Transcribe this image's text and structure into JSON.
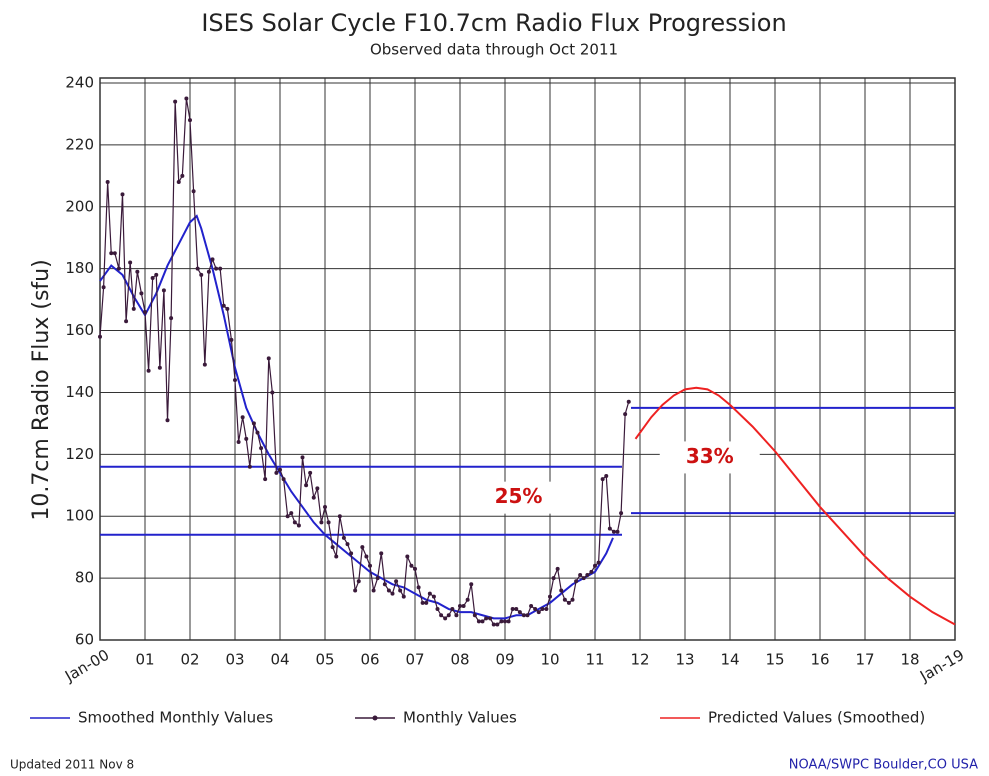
{
  "chart_data": {
    "type": "line",
    "title": "ISES Solar Cycle F10.7cm Radio Flux Progression",
    "subtitle": "Observed data through Oct 2011",
    "y_label": "10.7cm Radio Flux (sfu)",
    "xlim": [
      2000,
      2019
    ],
    "xticks": [
      {
        "value": 2000,
        "label": "Jan-00"
      },
      {
        "value": 2001,
        "label": "01"
      },
      {
        "value": 2002,
        "label": "02"
      },
      {
        "value": 2003,
        "label": "03"
      },
      {
        "value": 2004,
        "label": "04"
      },
      {
        "value": 2005,
        "label": "05"
      },
      {
        "value": 2006,
        "label": "06"
      },
      {
        "value": 2007,
        "label": "07"
      },
      {
        "value": 2008,
        "label": "08"
      },
      {
        "value": 2009,
        "label": "09"
      },
      {
        "value": 2010,
        "label": "10"
      },
      {
        "value": 2011,
        "label": "11"
      },
      {
        "value": 2012,
        "label": "12"
      },
      {
        "value": 2013,
        "label": "13"
      },
      {
        "value": 2014,
        "label": "14"
      },
      {
        "value": 2015,
        "label": "15"
      },
      {
        "value": 2016,
        "label": "16"
      },
      {
        "value": 2017,
        "label": "17"
      },
      {
        "value": 2018,
        "label": "18"
      },
      {
        "value": 2019,
        "label": "Jan-19"
      }
    ],
    "ylim": [
      60,
      240
    ],
    "yticks": [
      60,
      80,
      100,
      120,
      140,
      160,
      180,
      200,
      220,
      240
    ],
    "grid": true,
    "series": [
      {
        "name": "Smoothed Monthly Values",
        "color": "#2222cc",
        "markers": false,
        "x": [
          2000,
          2000.25,
          2000.5,
          2000.75,
          2001,
          2001.25,
          2001.5,
          2001.75,
          2002,
          2002.15,
          2002.25,
          2002.5,
          2002.75,
          2003,
          2003.25,
          2003.5,
          2003.75,
          2004,
          2004.25,
          2004.5,
          2004.75,
          2005,
          2005.25,
          2005.5,
          2005.75,
          2006,
          2006.25,
          2006.5,
          2006.75,
          2007,
          2007.25,
          2007.5,
          2007.75,
          2008,
          2008.25,
          2008.5,
          2008.75,
          2009,
          2009.25,
          2009.5,
          2009.75,
          2010,
          2010.25,
          2010.5,
          2010.75,
          2011,
          2011.25,
          2011.4
        ],
        "values": [
          176,
          181,
          178,
          171,
          165,
          172,
          181,
          188,
          195,
          197,
          193,
          180,
          165,
          148,
          135,
          127,
          120,
          114,
          108,
          103,
          98,
          94,
          91,
          88,
          85,
          82,
          80,
          78,
          77,
          75,
          73,
          72,
          70,
          69,
          69,
          68,
          67,
          67,
          68,
          68,
          70,
          72,
          75,
          78,
          80,
          82,
          88,
          93
        ]
      },
      {
        "name": "Monthly Values",
        "color": "#3a1a3a",
        "markers": true,
        "x": [
          2000,
          2000.08,
          2000.17,
          2000.25,
          2000.33,
          2000.42,
          2000.5,
          2000.58,
          2000.67,
          2000.75,
          2000.83,
          2000.92,
          2001,
          2001.08,
          2001.17,
          2001.25,
          2001.33,
          2001.42,
          2001.5,
          2001.58,
          2001.67,
          2001.75,
          2001.83,
          2001.92,
          2002,
          2002.08,
          2002.17,
          2002.25,
          2002.33,
          2002.42,
          2002.5,
          2002.58,
          2002.67,
          2002.75,
          2002.83,
          2002.92,
          2003,
          2003.08,
          2003.17,
          2003.25,
          2003.33,
          2003.42,
          2003.5,
          2003.58,
          2003.67,
          2003.75,
          2003.83,
          2003.92,
          2004,
          2004.08,
          2004.17,
          2004.25,
          2004.33,
          2004.42,
          2004.5,
          2004.58,
          2004.67,
          2004.75,
          2004.83,
          2004.92,
          2005,
          2005.08,
          2005.17,
          2005.25,
          2005.33,
          2005.42,
          2005.5,
          2005.58,
          2005.67,
          2005.75,
          2005.83,
          2005.92,
          2006,
          2006.08,
          2006.17,
          2006.25,
          2006.33,
          2006.42,
          2006.5,
          2006.58,
          2006.67,
          2006.75,
          2006.83,
          2006.92,
          2007,
          2007.08,
          2007.17,
          2007.25,
          2007.33,
          2007.42,
          2007.5,
          2007.58,
          2007.67,
          2007.75,
          2007.83,
          2007.92,
          2008,
          2008.08,
          2008.17,
          2008.25,
          2008.33,
          2008.42,
          2008.5,
          2008.58,
          2008.67,
          2008.75,
          2008.83,
          2008.92,
          2009,
          2009.08,
          2009.17,
          2009.25,
          2009.33,
          2009.42,
          2009.5,
          2009.58,
          2009.67,
          2009.75,
          2009.83,
          2009.92,
          2010,
          2010.08,
          2010.17,
          2010.25,
          2010.33,
          2010.42,
          2010.5,
          2010.58,
          2010.67,
          2010.75,
          2010.83,
          2010.92,
          2011,
          2011.08,
          2011.17,
          2011.25,
          2011.33,
          2011.42,
          2011.5,
          2011.58,
          2011.67,
          2011.75
        ],
        "values": [
          158,
          174,
          208,
          185,
          185,
          180,
          204,
          163,
          182,
          167,
          179,
          172,
          166,
          147,
          177,
          178,
          148,
          173,
          131,
          164,
          234,
          208,
          210,
          235,
          228,
          205,
          180,
          178,
          149,
          179,
          183,
          180,
          180,
          168,
          167,
          157,
          144,
          124,
          132,
          125,
          116,
          130,
          127,
          122,
          112,
          151,
          140,
          114,
          115,
          112,
          100,
          101,
          98,
          97,
          119,
          110,
          114,
          106,
          109,
          98,
          103,
          98,
          90,
          87,
          100,
          93,
          91,
          88,
          76,
          79,
          90,
          87,
          84,
          76,
          80,
          88,
          78,
          76,
          75,
          79,
          76,
          74,
          87,
          84,
          83,
          77,
          72,
          72,
          75,
          74,
          70,
          68,
          67,
          68,
          70,
          68,
          71,
          71,
          73,
          78,
          68,
          66,
          66,
          67,
          67,
          65,
          65,
          66,
          66,
          66,
          70,
          70,
          69,
          68,
          68,
          71,
          70,
          69,
          70,
          70,
          74,
          80,
          83,
          76,
          73,
          72,
          73,
          79,
          81,
          80,
          81,
          82,
          84,
          85,
          112,
          113,
          96,
          95,
          95,
          101,
          133,
          137
        ]
      },
      {
        "name": "Predicted Values (Smoothed)",
        "color": "#ee2222",
        "markers": false,
        "x": [
          2011.9,
          2012.25,
          2012.5,
          2012.75,
          2013,
          2013.25,
          2013.5,
          2013.75,
          2014,
          2014.5,
          2015,
          2015.5,
          2016,
          2016.5,
          2017,
          2017.5,
          2018,
          2018.5,
          2019
        ],
        "values": [
          125,
          132,
          136,
          139,
          141,
          141.5,
          141,
          139,
          136,
          129,
          121,
          112,
          103,
          95,
          87,
          80,
          74,
          69,
          65
        ]
      }
    ],
    "reference_lines": [
      {
        "value": 116,
        "xlim": [
          2000,
          2011.6
        ],
        "color": "#2222cc"
      },
      {
        "value": 94,
        "xlim": [
          2000,
          2011.6
        ],
        "color": "#2222cc"
      },
      {
        "value": 135,
        "xlim": [
          2011.8,
          2019
        ],
        "color": "#2222cc"
      },
      {
        "value": 101,
        "xlim": [
          2011.8,
          2019
        ],
        "color": "#2222cc"
      }
    ],
    "annotations": [
      {
        "text": "25%",
        "x": 2009.3,
        "y": 106,
        "color": "#cc1111"
      },
      {
        "text": "33%",
        "x": 2013.55,
        "y": 119,
        "color": "#cc1111"
      }
    ],
    "legend_position": "bottom",
    "footer_left": "Updated 2011 Nov 8",
    "footer_right": "NOAA/SWPC Boulder,CO USA"
  }
}
